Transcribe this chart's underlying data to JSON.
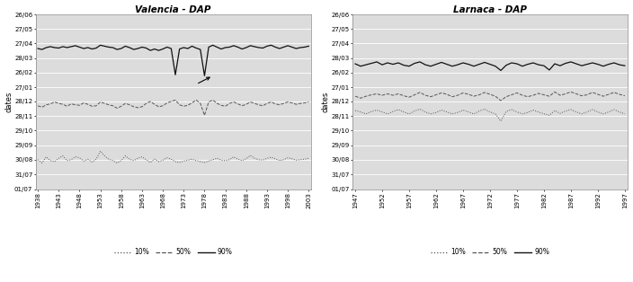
{
  "valencia": {
    "title": "Valencia - DAP",
    "years": [
      1938,
      1939,
      1940,
      1941,
      1942,
      1943,
      1944,
      1945,
      1946,
      1947,
      1948,
      1949,
      1950,
      1951,
      1952,
      1953,
      1954,
      1955,
      1956,
      1957,
      1958,
      1959,
      1960,
      1961,
      1962,
      1963,
      1964,
      1965,
      1966,
      1967,
      1968,
      1969,
      1970,
      1971,
      1972,
      1973,
      1974,
      1975,
      1976,
      1977,
      1978,
      1979,
      1980,
      1981,
      1982,
      1983,
      1984,
      1985,
      1986,
      1987,
      1988,
      1989,
      1990,
      1991,
      1992,
      1993,
      1994,
      1995,
      1996,
      1997,
      1998,
      1999,
      2000,
      2001,
      2002,
      2003
    ],
    "p10": [
      62,
      55,
      68,
      60,
      58,
      65,
      70,
      60,
      62,
      68,
      66,
      59,
      63,
      57,
      63,
      80,
      70,
      63,
      60,
      55,
      60,
      70,
      63,
      60,
      65,
      68,
      62,
      56,
      63,
      58,
      61,
      66,
      63,
      58,
      56,
      59,
      61,
      63,
      60,
      58,
      56,
      59,
      62,
      65,
      61,
      60,
      62,
      68,
      63,
      60,
      64,
      71,
      65,
      62,
      61,
      65,
      67,
      64,
      60,
      62,
      66,
      64,
      61,
      62,
      63,
      65
    ],
    "p50": [
      175,
      172,
      177,
      179,
      183,
      180,
      178,
      174,
      179,
      177,
      176,
      181,
      178,
      174,
      175,
      183,
      180,
      177,
      175,
      170,
      174,
      180,
      177,
      173,
      171,
      173,
      180,
      184,
      178,
      173,
      175,
      181,
      184,
      187,
      177,
      174,
      176,
      181,
      187,
      180,
      179,
      183,
      187,
      180,
      176,
      174,
      180,
      183,
      179,
      175,
      178,
      183,
      180,
      177,
      175,
      180,
      183,
      179,
      177,
      180,
      183,
      181,
      178,
      180,
      181,
      183
    ],
    "p50_dip": [
      175,
      172,
      177,
      179,
      183,
      180,
      178,
      174,
      179,
      177,
      176,
      181,
      178,
      174,
      175,
      183,
      180,
      177,
      175,
      170,
      174,
      180,
      177,
      173,
      171,
      173,
      180,
      184,
      178,
      173,
      175,
      181,
      184,
      187,
      177,
      174,
      176,
      181,
      187,
      180,
      155,
      183,
      187,
      180,
      176,
      174,
      180,
      183,
      179,
      175,
      178,
      183,
      180,
      177,
      175,
      180,
      183,
      179,
      177,
      180,
      183,
      181,
      178,
      180,
      181,
      183
    ],
    "p90": [
      295,
      293,
      297,
      299,
      297,
      296,
      299,
      297,
      299,
      301,
      298,
      295,
      297,
      294,
      296,
      302,
      300,
      298,
      297,
      293,
      295,
      300,
      297,
      293,
      295,
      298,
      296,
      291,
      294,
      291,
      294,
      298,
      295,
      240,
      294,
      297,
      295,
      300,
      296,
      293,
      238,
      298,
      302,
      298,
      294,
      297,
      298,
      301,
      298,
      294,
      297,
      301,
      299,
      297,
      296,
      300,
      302,
      298,
      295,
      298,
      301,
      298,
      295,
      297,
      298,
      300
    ],
    "xticks": [
      1938,
      1943,
      1948,
      1953,
      1958,
      1963,
      1968,
      1973,
      1978,
      1983,
      1988,
      1993,
      1998,
      2003
    ]
  },
  "larnaca": {
    "title": "Larnaca - DAP",
    "years": [
      1947,
      1948,
      1949,
      1950,
      1951,
      1952,
      1953,
      1954,
      1955,
      1956,
      1957,
      1958,
      1959,
      1960,
      1961,
      1962,
      1963,
      1964,
      1965,
      1966,
      1967,
      1968,
      1969,
      1970,
      1971,
      1972,
      1973,
      1974,
      1975,
      1976,
      1977,
      1978,
      1979,
      1980,
      1981,
      1982,
      1983,
      1984,
      1985,
      1986,
      1987,
      1988,
      1989,
      1990,
      1991,
      1992,
      1993,
      1994,
      1995,
      1996,
      1997
    ],
    "p10": [
      165,
      162,
      158,
      163,
      166,
      162,
      158,
      163,
      167,
      162,
      158,
      164,
      168,
      162,
      158,
      161,
      166,
      162,
      158,
      161,
      166,
      162,
      158,
      164,
      168,
      162,
      158,
      143,
      163,
      167,
      162,
      158,
      161,
      166,
      162,
      158,
      155,
      165,
      159,
      164,
      167,
      162,
      158,
      162,
      167,
      162,
      158,
      162,
      167,
      162,
      158
    ],
    "p50": [
      195,
      191,
      195,
      198,
      200,
      197,
      200,
      197,
      200,
      196,
      193,
      198,
      203,
      197,
      194,
      198,
      202,
      199,
      194,
      197,
      202,
      199,
      195,
      198,
      203,
      199,
      195,
      186,
      194,
      198,
      202,
      197,
      194,
      197,
      201,
      198,
      195,
      204,
      197,
      200,
      204,
      200,
      196,
      198,
      203,
      199,
      195,
      199,
      203,
      199,
      196
    ],
    "p90": [
      263,
      258,
      261,
      264,
      267,
      261,
      265,
      262,
      265,
      260,
      258,
      264,
      267,
      261,
      258,
      262,
      266,
      262,
      258,
      261,
      265,
      262,
      258,
      262,
      266,
      262,
      258,
      249,
      260,
      265,
      263,
      258,
      262,
      265,
      261,
      259,
      250,
      263,
      259,
      264,
      267,
      263,
      259,
      262,
      265,
      262,
      258,
      262,
      265,
      261,
      259
    ],
    "xticks": [
      1947,
      1952,
      1957,
      1962,
      1967,
      1972,
      1977,
      1982,
      1987,
      1992,
      1997
    ]
  },
  "ytick_vals": [
    0,
    31,
    62,
    92,
    123,
    153,
    184,
    214,
    245,
    275,
    306,
    336,
    366
  ],
  "ytick_labels": [
    "01/07",
    "31/07",
    "30/08",
    "29/09",
    "29/10",
    "28/11",
    "28/12",
    "27/01",
    "26/02",
    "28/03",
    "27/04",
    "27/05",
    "26/06"
  ],
  "bg_color": "#dcdcdc",
  "fig_bg": "#ffffff"
}
